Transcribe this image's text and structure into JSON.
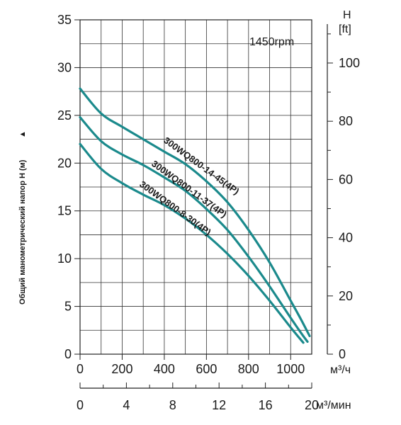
{
  "chart_data": {
    "type": "line",
    "speed_label": "1450rpm",
    "ylabel": "Общий манометрический напор H (м)",
    "ylabel_arrow": "▲",
    "right_axis": {
      "title_top": "H",
      "title_unit": "[ft]",
      "ticks": [
        "0",
        "20",
        "40",
        "60",
        "80",
        "100"
      ],
      "ticks_values": [
        0,
        20,
        40,
        60,
        80,
        100
      ]
    },
    "left_axis": {
      "ticks": [
        "0",
        "5",
        "10",
        "15",
        "20",
        "25",
        "30",
        "35"
      ],
      "ylim": [
        0,
        35
      ]
    },
    "x_axis": {
      "ticks": [
        "0",
        "200",
        "400",
        "600",
        "800",
        "1000"
      ],
      "unit": "м³/ч",
      "xlim": [
        0,
        1100
      ]
    },
    "x_axis2": {
      "ticks": [
        "0",
        "4",
        "8",
        "12",
        "16",
        "20"
      ],
      "unit": "м³/мин",
      "xlim": [
        0,
        20
      ]
    },
    "grid": true,
    "series": [
      {
        "name": "300WQ800-14-45(4P)",
        "color": "#1b8a8c",
        "x": [
          0,
          100,
          200,
          300,
          400,
          500,
          600,
          700,
          800,
          900,
          1000,
          1050,
          1090
        ],
        "y": [
          27.8,
          25.2,
          23.8,
          22.5,
          21.2,
          19.9,
          18.1,
          15.9,
          13.0,
          9.6,
          5.6,
          3.6,
          1.9
        ]
      },
      {
        "name": "300WQ800-11-37(4P)",
        "color": "#1b8a8c",
        "x": [
          0,
          100,
          200,
          300,
          400,
          500,
          600,
          700,
          800,
          900,
          1000,
          1050,
          1080
        ],
        "y": [
          24.8,
          22.3,
          20.9,
          19.8,
          18.5,
          17.1,
          15.2,
          13.0,
          10.2,
          7.1,
          3.8,
          2.2,
          1.3
        ]
      },
      {
        "name": "300WQ800-8-30(4P)",
        "color": "#1b8a8c",
        "x": [
          0,
          100,
          200,
          300,
          400,
          500,
          600,
          700,
          800,
          900,
          1000,
          1060
        ],
        "y": [
          22.0,
          19.4,
          17.9,
          16.7,
          15.6,
          14.2,
          12.5,
          10.5,
          8.2,
          5.6,
          2.8,
          1.2
        ]
      }
    ]
  }
}
